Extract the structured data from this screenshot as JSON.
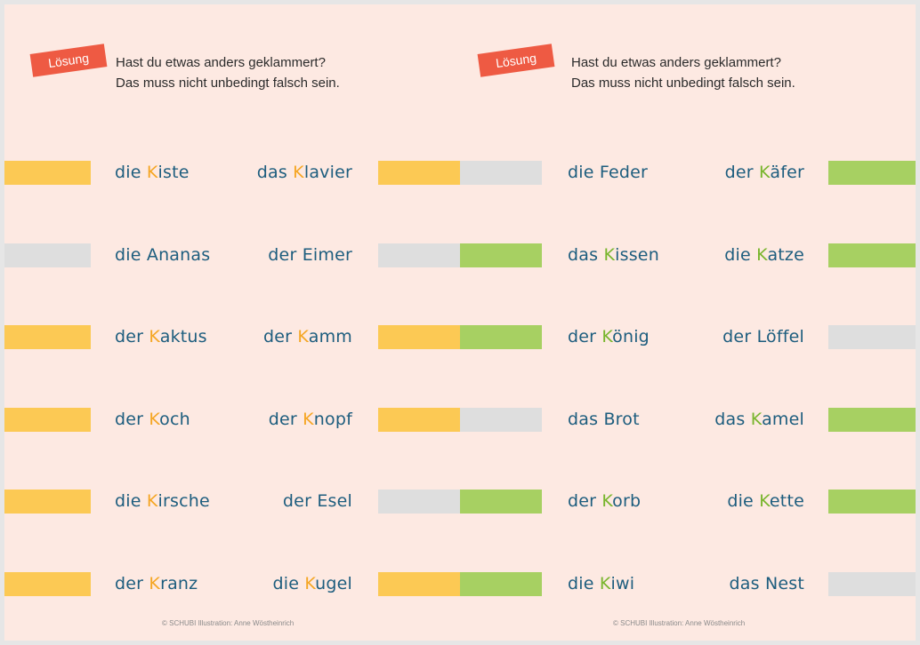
{
  "colors": {
    "background": "#fde9e2",
    "badge": "#ee5a43",
    "yellow_bar": "#fcc954",
    "green_bar": "#a7d062",
    "grey_bar": "#dedede",
    "word_text": "#1d5d7e",
    "highlight_orange": "#f5a623",
    "highlight_green": "#78b52c"
  },
  "left_panel": {
    "badge": "Lösung",
    "intro_line_1": "Hast du etwas anders geklammert?",
    "intro_line_2": "Das muss nicht unbedingt falsch sein.",
    "credit": "© SCHUBI  Illustration: Anne Wöstheinrich",
    "rows": [
      {
        "left": {
          "pre": "die ",
          "k": "K",
          "post": "iste"
        },
        "right": {
          "pre": "das ",
          "k": "K",
          "post": "lavier"
        }
      },
      {
        "left": {
          "pre": "die Ananas",
          "k": "",
          "post": ""
        },
        "right": {
          "pre": "der Eimer",
          "k": "",
          "post": ""
        }
      },
      {
        "left": {
          "pre": "der ",
          "k": "K",
          "post": "aktus"
        },
        "right": {
          "pre": "der ",
          "k": "K",
          "post": "amm"
        }
      },
      {
        "left": {
          "pre": "der ",
          "k": "K",
          "post": "och"
        },
        "right": {
          "pre": "der ",
          "k": "K",
          "post": "nopf"
        }
      },
      {
        "left": {
          "pre": "die ",
          "k": "K",
          "post": "irsche"
        },
        "right": {
          "pre": "der Esel",
          "k": "",
          "post": ""
        }
      },
      {
        "left": {
          "pre": "der ",
          "k": "K",
          "post": "ranz"
        },
        "right": {
          "pre": "die ",
          "k": "K",
          "post": "ugel"
        }
      }
    ]
  },
  "right_panel": {
    "badge": "Lösung",
    "intro_line_1": "Hast du etwas anders geklammert?",
    "intro_line_2": "Das muss nicht unbedingt falsch sein.",
    "credit": "© SCHUBI  Illustration: Anne Wöstheinrich",
    "rows": [
      {
        "left": {
          "pre": "die Feder",
          "k": "",
          "post": ""
        },
        "right": {
          "pre": "der ",
          "k": "K",
          "post": "äfer"
        }
      },
      {
        "left": {
          "pre": "das ",
          "k": "K",
          "post": "issen"
        },
        "right": {
          "pre": "die ",
          "k": "K",
          "post": "atze"
        }
      },
      {
        "left": {
          "pre": "der ",
          "k": "K",
          "post": "önig"
        },
        "right": {
          "pre": "der Löffel",
          "k": "",
          "post": ""
        }
      },
      {
        "left": {
          "pre": "das Brot",
          "k": "",
          "post": ""
        },
        "right": {
          "pre": "das ",
          "k": "K",
          "post": "amel"
        }
      },
      {
        "left": {
          "pre": "der ",
          "k": "K",
          "post": "orb"
        },
        "right": {
          "pre": "die ",
          "k": "K",
          "post": "ette"
        }
      },
      {
        "left": {
          "pre": "die ",
          "k": "K",
          "post": "iwi"
        },
        "right": {
          "pre": "das Nest",
          "k": "",
          "post": ""
        }
      }
    ]
  }
}
